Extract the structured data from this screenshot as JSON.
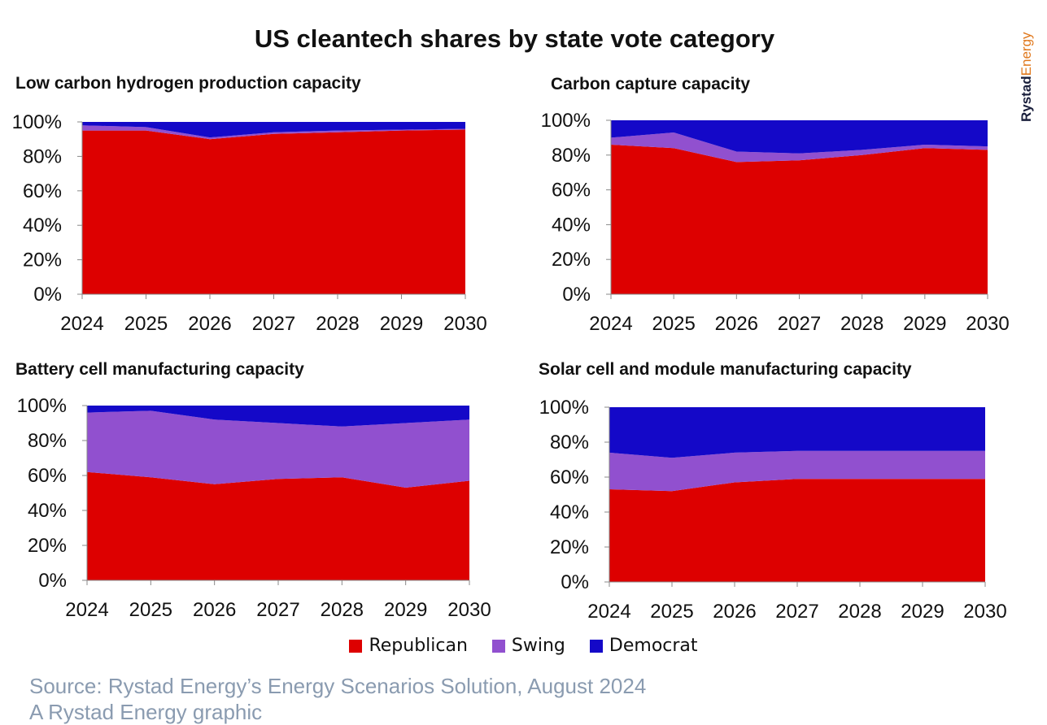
{
  "title": "US cleantech shares by state vote category",
  "logo": {
    "part1": "Rystad",
    "part2": "Energy"
  },
  "colors": {
    "Republican": "#dd0000",
    "Swing": "#9150cf",
    "Democrat": "#1408c8"
  },
  "legend": [
    "Republican",
    "Swing",
    "Democrat"
  ],
  "source": {
    "line1": "Source: Rystad Energy’s Energy Scenarios Solution, August 2024",
    "line2": "A Rystad Energy graphic"
  },
  "chart_data": [
    {
      "type": "area",
      "stacked": true,
      "title": "Low carbon hydrogen production capacity",
      "x": [
        "2024",
        "2025",
        "2026",
        "2027",
        "2028",
        "2029",
        "2030"
      ],
      "ylim": [
        0,
        100
      ],
      "yticks": [
        "0%",
        "20%",
        "40%",
        "60%",
        "80%",
        "100%"
      ],
      "series": [
        {
          "name": "Republican",
          "values": [
            95,
            95,
            90,
            93,
            94,
            95,
            95.5
          ]
        },
        {
          "name": "Swing",
          "values": [
            3,
            2,
            1,
            1,
            1,
            0.5,
            0.5
          ]
        },
        {
          "name": "Democrat",
          "values": [
            2,
            3,
            9,
            6,
            5,
            4.5,
            4
          ]
        }
      ]
    },
    {
      "type": "area",
      "stacked": true,
      "title": "Carbon capture capacity",
      "x": [
        "2024",
        "2025",
        "2026",
        "2027",
        "2028",
        "2029",
        "2030"
      ],
      "ylim": [
        0,
        100
      ],
      "yticks": [
        "0%",
        "20%",
        "40%",
        "60%",
        "80%",
        "100%"
      ],
      "series": [
        {
          "name": "Republican",
          "values": [
            86,
            84,
            76,
            77,
            80,
            84,
            83
          ]
        },
        {
          "name": "Swing",
          "values": [
            4,
            9,
            6,
            4,
            3,
            2,
            2
          ]
        },
        {
          "name": "Democrat",
          "values": [
            10,
            7,
            18,
            19,
            17,
            14,
            15
          ]
        }
      ]
    },
    {
      "type": "area",
      "stacked": true,
      "title": "Battery cell manufacturing capacity",
      "x": [
        "2024",
        "2025",
        "2026",
        "2027",
        "2028",
        "2029",
        "2030"
      ],
      "ylim": [
        0,
        100
      ],
      "yticks": [
        "0%",
        "20%",
        "40%",
        "60%",
        "80%",
        "100%"
      ],
      "series": [
        {
          "name": "Republican",
          "values": [
            62,
            59,
            55,
            58,
            59,
            53,
            57
          ]
        },
        {
          "name": "Swing",
          "values": [
            34,
            38,
            37,
            32,
            29,
            37,
            35
          ]
        },
        {
          "name": "Democrat",
          "values": [
            4,
            3,
            8,
            10,
            12,
            10,
            8
          ]
        }
      ]
    },
    {
      "type": "area",
      "stacked": true,
      "title": "Solar cell and module manufacturing capacity",
      "x": [
        "2024",
        "2025",
        "2026",
        "2027",
        "2028",
        "2029",
        "2030"
      ],
      "ylim": [
        0,
        100
      ],
      "yticks": [
        "0%",
        "20%",
        "40%",
        "60%",
        "80%",
        "100%"
      ],
      "series": [
        {
          "name": "Republican",
          "values": [
            53,
            52,
            57,
            59,
            59,
            59,
            59
          ]
        },
        {
          "name": "Swing",
          "values": [
            21,
            19,
            17,
            16,
            16,
            16,
            16
          ]
        },
        {
          "name": "Democrat",
          "values": [
            26,
            29,
            26,
            25,
            25,
            25,
            25
          ]
        }
      ]
    }
  ]
}
